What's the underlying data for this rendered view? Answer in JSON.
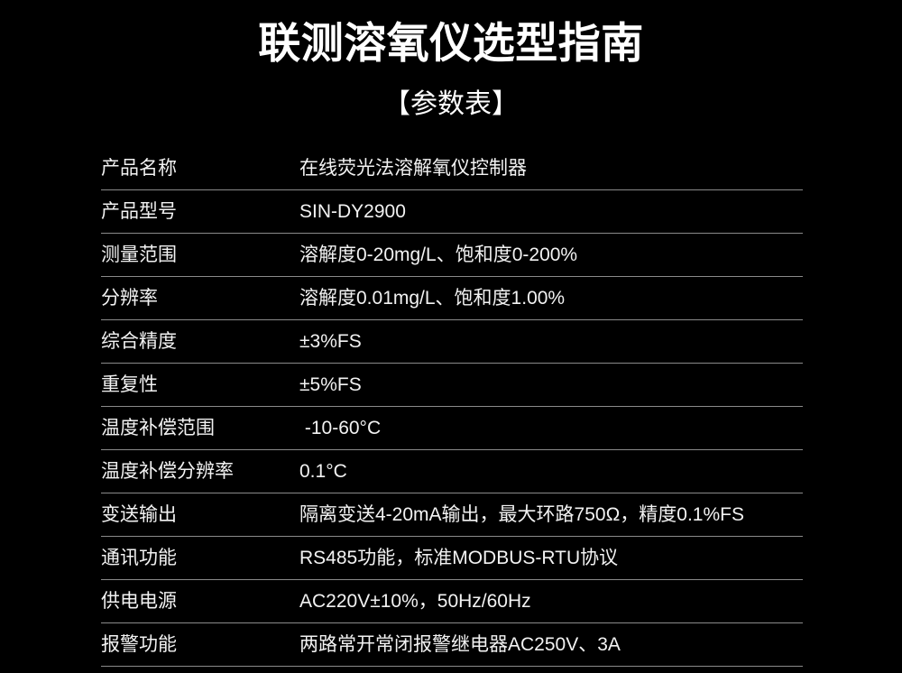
{
  "header": {
    "title": "联测溶氧仪选型指南",
    "subtitle": "【参数表】"
  },
  "table": {
    "rows": [
      {
        "label": "产品名称",
        "value": "在线荧光法溶解氧仪控制器"
      },
      {
        "label": "产品型号",
        "value": "SIN-DY2900"
      },
      {
        "label": "测量范围",
        "value": "溶解度0-20mg/L、饱和度0-200%"
      },
      {
        "label": "分辨率",
        "value": "溶解度0.01mg/L、饱和度1.00%"
      },
      {
        "label": "综合精度",
        "value": "±3%FS"
      },
      {
        "label": "重复性",
        "value": "±5%FS"
      },
      {
        "label": "温度补偿范围",
        "value": " -10-60°C"
      },
      {
        "label": "温度补偿分辨率",
        "value": "0.1°C"
      },
      {
        "label": "变送输出",
        "value": "隔离变送4-20mA输出，最大环路750Ω，精度0.1%FS"
      },
      {
        "label": "通讯功能",
        "value": "RS485功能，标准MODBUS-RTU协议"
      },
      {
        "label": "供电电源",
        "value": "AC220V±10%，50Hz/60Hz"
      },
      {
        "label": "报警功能",
        "value": "两路常开常闭报警继电器AC250V、3A"
      }
    ]
  },
  "colors": {
    "background": "#000000",
    "title_text": "#ffffff",
    "table_text": "#f2f2f2",
    "divider": "#8a8a8a"
  }
}
